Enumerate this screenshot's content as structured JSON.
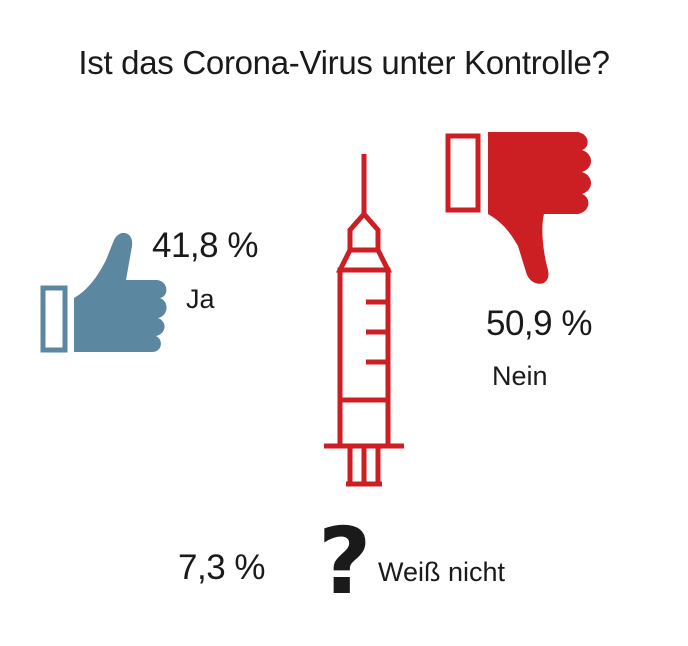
{
  "chart_data": {
    "type": "pictogram",
    "title": "Ist das Corona-Virus unter Kontrolle?",
    "categories": [
      "Ja",
      "Nein",
      "Weiß nicht"
    ],
    "values": [
      41.8,
      50.9,
      7.3
    ],
    "value_labels": [
      "41,8 %",
      "50,9 %",
      "7,3 %"
    ],
    "icons": [
      "thumbs-up-icon",
      "thumbs-down-icon",
      "question-mark-icon"
    ],
    "center_icon": "syringe-icon",
    "colors": {
      "ja": "#5b87a0",
      "nein": "#cc1f24",
      "weiss_nicht": "#1a1a1a",
      "syringe": "#cc1f24"
    }
  },
  "question_glyph": "?"
}
